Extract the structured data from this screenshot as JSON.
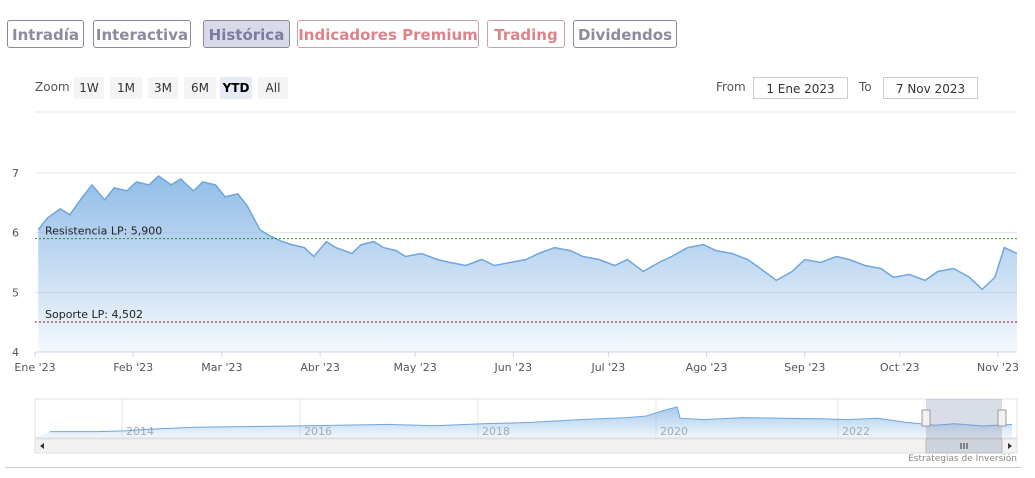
{
  "tabs": [
    {
      "label": "Intradía"
    },
    {
      "label": "Interactiva"
    },
    {
      "label": "Histórica"
    },
    {
      "label": "Indicadores Premium"
    },
    {
      "label": "Trading"
    },
    {
      "label": "Dividendos"
    }
  ],
  "zoom": {
    "label": "Zoom",
    "buttons": [
      "1W",
      "1M",
      "3M",
      "6M",
      "YTD",
      "All"
    ],
    "selected": "YTD"
  },
  "range": {
    "from_label": "From",
    "from_value": "1 Ene 2023",
    "to_label": "To",
    "to_value": "7 Nov 2023"
  },
  "credit": "Estrategias de Inversión",
  "colors": {
    "series": "#7fb1e3",
    "resistance": "#2e8b2e",
    "support": "#8b1a1a",
    "tab_active_bg": "#d9d9e8",
    "premium": "#e0828a"
  },
  "chart_data": {
    "type": "area",
    "ylim": [
      4,
      7
    ],
    "yticks": [
      "4",
      "5",
      "6",
      "7"
    ],
    "xticks": [
      "Ene '23",
      "Feb '23",
      "Mar '23",
      "Abr '23",
      "May '23",
      "Jun '23",
      "Jul '23",
      "Ago '23",
      "Sep '23",
      "Oct '23",
      "Nov '23"
    ],
    "xrange": [
      "2023-01-01",
      "2023-11-07"
    ],
    "grid": true,
    "series": [
      {
        "values": [
          [
            "2023-01-02",
            6.05
          ],
          [
            "2023-01-05",
            6.25
          ],
          [
            "2023-01-09",
            6.4
          ],
          [
            "2023-01-12",
            6.3
          ],
          [
            "2023-01-16",
            6.6
          ],
          [
            "2023-01-19",
            6.8
          ],
          [
            "2023-01-23",
            6.55
          ],
          [
            "2023-01-26",
            6.75
          ],
          [
            "2023-01-30",
            6.7
          ],
          [
            "2023-02-02",
            6.85
          ],
          [
            "2023-02-06",
            6.8
          ],
          [
            "2023-02-09",
            6.95
          ],
          [
            "2023-02-13",
            6.8
          ],
          [
            "2023-02-16",
            6.9
          ],
          [
            "2023-02-20",
            6.7
          ],
          [
            "2023-02-23",
            6.85
          ],
          [
            "2023-02-27",
            6.8
          ],
          [
            "2023-03-02",
            6.6
          ],
          [
            "2023-03-06",
            6.65
          ],
          [
            "2023-03-09",
            6.45
          ],
          [
            "2023-03-13",
            6.05
          ],
          [
            "2023-03-16",
            5.95
          ],
          [
            "2023-03-20",
            5.85
          ],
          [
            "2023-03-23",
            5.8
          ],
          [
            "2023-03-27",
            5.75
          ],
          [
            "2023-03-30",
            5.6
          ],
          [
            "2023-04-03",
            5.85
          ],
          [
            "2023-04-06",
            5.75
          ],
          [
            "2023-04-11",
            5.65
          ],
          [
            "2023-04-14",
            5.8
          ],
          [
            "2023-04-18",
            5.85
          ],
          [
            "2023-04-21",
            5.75
          ],
          [
            "2023-04-25",
            5.7
          ],
          [
            "2023-04-28",
            5.6
          ],
          [
            "2023-05-03",
            5.65
          ],
          [
            "2023-05-08",
            5.55
          ],
          [
            "2023-05-12",
            5.5
          ],
          [
            "2023-05-17",
            5.45
          ],
          [
            "2023-05-22",
            5.55
          ],
          [
            "2023-05-26",
            5.45
          ],
          [
            "2023-05-31",
            5.5
          ],
          [
            "2023-06-05",
            5.55
          ],
          [
            "2023-06-09",
            5.65
          ],
          [
            "2023-06-14",
            5.75
          ],
          [
            "2023-06-19",
            5.7
          ],
          [
            "2023-06-23",
            5.6
          ],
          [
            "2023-06-28",
            5.55
          ],
          [
            "2023-07-03",
            5.45
          ],
          [
            "2023-07-07",
            5.55
          ],
          [
            "2023-07-12",
            5.35
          ],
          [
            "2023-07-17",
            5.5
          ],
          [
            "2023-07-21",
            5.6
          ],
          [
            "2023-07-26",
            5.75
          ],
          [
            "2023-07-31",
            5.8
          ],
          [
            "2023-08-04",
            5.7
          ],
          [
            "2023-08-09",
            5.65
          ],
          [
            "2023-08-14",
            5.55
          ],
          [
            "2023-08-18",
            5.4
          ],
          [
            "2023-08-23",
            5.2
          ],
          [
            "2023-08-28",
            5.35
          ],
          [
            "2023-09-01",
            5.55
          ],
          [
            "2023-09-06",
            5.5
          ],
          [
            "2023-09-11",
            5.6
          ],
          [
            "2023-09-15",
            5.55
          ],
          [
            "2023-09-20",
            5.45
          ],
          [
            "2023-09-25",
            5.4
          ],
          [
            "2023-09-29",
            5.25
          ],
          [
            "2023-10-04",
            5.3
          ],
          [
            "2023-10-09",
            5.2
          ],
          [
            "2023-10-13",
            5.35
          ],
          [
            "2023-10-18",
            5.4
          ],
          [
            "2023-10-23",
            5.25
          ],
          [
            "2023-10-27",
            5.05
          ],
          [
            "2023-10-31",
            5.25
          ],
          [
            "2023-11-03",
            5.75
          ],
          [
            "2023-11-07",
            5.65
          ]
        ]
      }
    ],
    "annotations": [
      {
        "label": "Resistencia LP: 5,900",
        "value": 5.9
      },
      {
        "label": "Soporte LP: 4,502",
        "value": 4.502
      }
    ],
    "navigator": {
      "xticks": [
        "2014",
        "2016",
        "2018",
        "2020",
        "2022"
      ]
    }
  }
}
